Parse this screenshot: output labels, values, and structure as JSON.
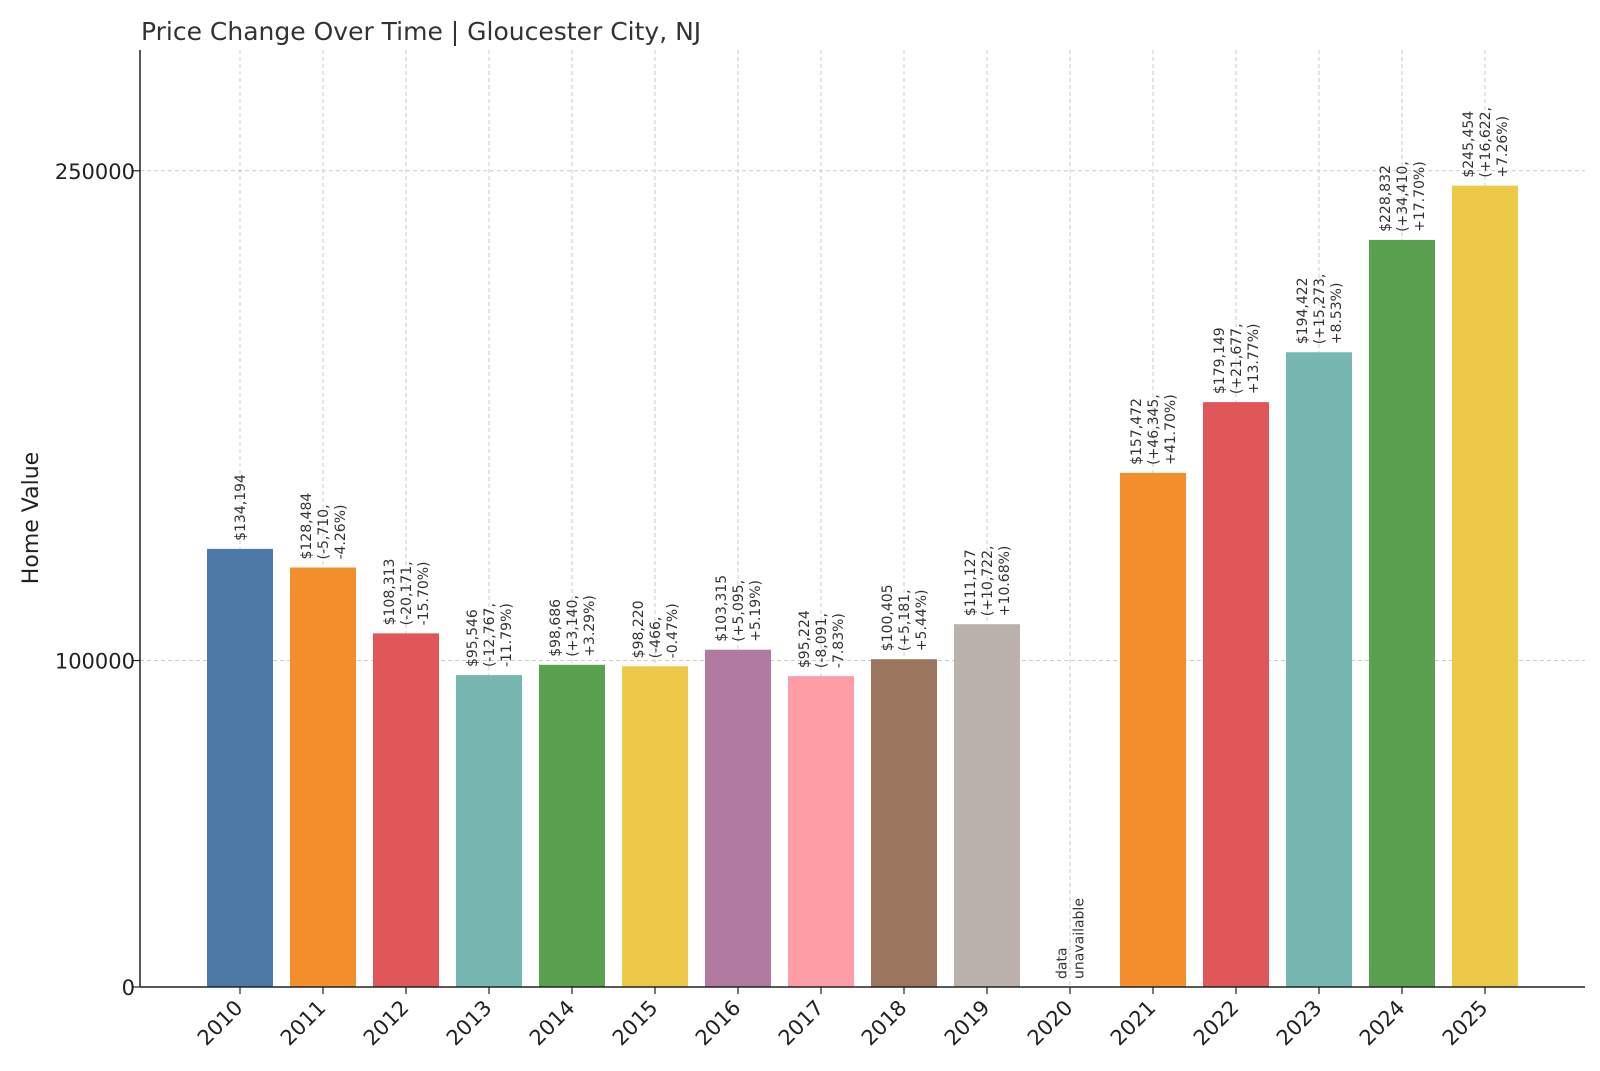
{
  "chart_data": {
    "type": "bar",
    "title": "Price Change Over Time | Gloucester City, NJ",
    "xlabel": "",
    "ylabel": "Home Value",
    "ylim": [
      0,
      287000
    ],
    "yticks": [
      0,
      100000,
      250000
    ],
    "ytick_labels": [
      "0",
      "100000",
      "250000"
    ],
    "grid": true,
    "categories": [
      "2010",
      "2011",
      "2012",
      "2013",
      "2014",
      "2015",
      "2016",
      "2017",
      "2018",
      "2019",
      "2020",
      "2021",
      "2022",
      "2023",
      "2024",
      "2025"
    ],
    "values": [
      134194,
      128484,
      108313,
      95546,
      98686,
      98220,
      103315,
      95224,
      100405,
      111127,
      null,
      157472,
      179149,
      194422,
      228832,
      245454
    ],
    "bar_labels": [
      [
        "$134,194"
      ],
      [
        "$128,484",
        "(-5,710,",
        "-4.26%)"
      ],
      [
        "$108,313",
        "(-20,171,",
        "-15.70%)"
      ],
      [
        "$95,546",
        "(-12,767,",
        "-11.79%)"
      ],
      [
        "$98,686",
        "(+3,140,",
        "+3.29%)"
      ],
      [
        "$98,220",
        "(-466,",
        "-0.47%)"
      ],
      [
        "$103,315",
        "(+5,095,",
        "+5.19%)"
      ],
      [
        "$95,224",
        "(-8,091,",
        "-7.83%)"
      ],
      [
        "$100,405",
        "(+5,181,",
        "+5.44%)"
      ],
      [
        "$111,127",
        "(+10,722,",
        "+10.68%)"
      ],
      [
        "data",
        "unavailable"
      ],
      [
        "$157,472",
        "(+46,345,",
        "+41.70%)"
      ],
      [
        "$179,149",
        "(+21,677,",
        "+13.77%)"
      ],
      [
        "$194,422",
        "(+15,273,",
        "+8.53%)"
      ],
      [
        "$228,832",
        "(+34,410,",
        "+17.70%)"
      ],
      [
        "$245,454",
        "(+16,622,",
        "+7.26%)"
      ]
    ],
    "colors": [
      "#4e79a7",
      "#f28e2b",
      "#e15759",
      "#76b7b2",
      "#59a14f",
      "#edc948",
      "#b07aa1",
      "#ff9da7",
      "#9c755f",
      "#bab0ac",
      "#4e79a7",
      "#f28e2b",
      "#e15759",
      "#76b7b2",
      "#59a14f",
      "#edc948"
    ]
  }
}
